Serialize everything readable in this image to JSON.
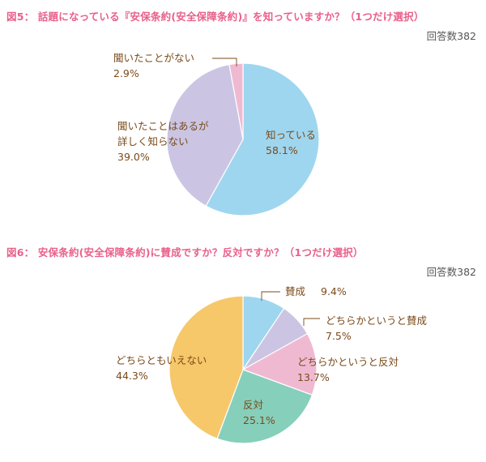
{
  "chart_data": [
    {
      "type": "pie",
      "title": "図5： 話題になっている『安保条約(安全保障条約)』を知っていますか？（1つだけ選択）",
      "respondents": "回答数382",
      "slices": [
        {
          "label_lines": [
            "知っている"
          ],
          "value": 58.1,
          "value_text": "58.1%",
          "color": "#9fd6ef"
        },
        {
          "label_lines": [
            "聞いたことはあるが",
            "詳しく知らない"
          ],
          "value": 39.0,
          "value_text": "39.0%",
          "color": "#cbc5e3"
        },
        {
          "label_lines": [
            "聞いたことがない"
          ],
          "value": 2.9,
          "value_text": "2.9%",
          "color": "#f0b9d2"
        }
      ]
    },
    {
      "type": "pie",
      "title": "図6： 安保条約(安全保障条約)に賛成ですか？反対ですか？（1つだけ選択）",
      "respondents": "回答数382",
      "slices": [
        {
          "label_lines": [
            "賛成"
          ],
          "value": 9.4,
          "value_text": "9.4%",
          "color": "#9fd6ef"
        },
        {
          "label_lines": [
            "どちらかというと賛成"
          ],
          "value": 7.5,
          "value_text": "7.5%",
          "color": "#cbc5e3"
        },
        {
          "label_lines": [
            "どちらかというと反対"
          ],
          "value": 13.7,
          "value_text": "13.7%",
          "color": "#f0b9d2"
        },
        {
          "label_lines": [
            "反対"
          ],
          "value": 25.1,
          "value_text": "25.1%",
          "color": "#86cfbb"
        },
        {
          "label_lines": [
            "どちらともいえない"
          ],
          "value": 44.3,
          "value_text": "44.3%",
          "color": "#f6c86a"
        }
      ]
    }
  ]
}
